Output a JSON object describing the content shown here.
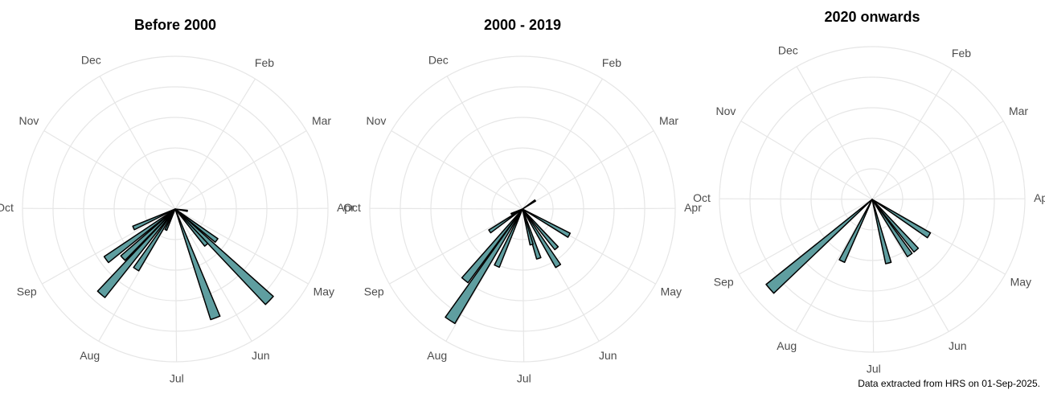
{
  "chart_data": [
    {
      "type": "bar",
      "polar": true,
      "title": "Before 2000",
      "x": [
        100,
        129,
        136,
        141,
        162,
        207,
        216,
        224,
        230,
        237,
        249
      ],
      "values": [
        0.8,
        3.4,
        8.6,
        3.1,
        7.6,
        1.5,
        4.7,
        7.4,
        4.7,
        5.6,
        3.0
      ],
      "color": "#5f9ea0",
      "xlim": [
        0,
        365
      ],
      "ylim": [
        0,
        10
      ],
      "yticks": [
        2,
        4,
        6,
        8,
        10
      ],
      "xticks": [
        {
          "value": 32,
          "label": "Feb"
        },
        {
          "value": 60,
          "label": "Mar"
        },
        {
          "value": 91,
          "label": "Apr"
        },
        {
          "value": 121,
          "label": "May"
        },
        {
          "value": 152,
          "label": "Jun"
        },
        {
          "value": 182,
          "label": "Jul"
        },
        {
          "value": 213,
          "label": "Aug"
        },
        {
          "value": 244,
          "label": "Sep"
        },
        {
          "value": 274,
          "label": "Oct"
        },
        {
          "value": 305,
          "label": "Nov"
        },
        {
          "value": 335,
          "label": "Dec"
        }
      ]
    },
    {
      "type": "bar",
      "polar": true,
      "title": "2000 - 2019",
      "x": [
        57,
        121,
        141,
        150,
        164,
        168,
        207,
        216,
        222,
        239,
        250
      ],
      "values": [
        1.0,
        3.5,
        3.4,
        4.4,
        3.4,
        2.4,
        4.1,
        8.7,
        6.0,
        2.6,
        0.8
      ],
      "color": "#5f9ea0",
      "xlim": [
        0,
        365
      ],
      "ylim": [
        0,
        10
      ],
      "yticks": [
        2,
        4,
        6,
        8,
        10
      ],
      "xticks": [
        {
          "value": 32,
          "label": "Feb"
        },
        {
          "value": 60,
          "label": "Mar"
        },
        {
          "value": 91,
          "label": "Apr"
        },
        {
          "value": 121,
          "label": "May"
        },
        {
          "value": 152,
          "label": "Jun"
        },
        {
          "value": 182,
          "label": "Jul"
        },
        {
          "value": 213,
          "label": "Aug"
        },
        {
          "value": 244,
          "label": "Sep"
        },
        {
          "value": 274,
          "label": "Oct"
        },
        {
          "value": 305,
          "label": "Nov"
        },
        {
          "value": 335,
          "label": "Dec"
        }
      ]
    },
    {
      "type": "bar",
      "polar": true,
      "title": "2020 onwards",
      "x": [
        124,
        141,
        148,
        168,
        209,
        232
      ],
      "values": [
        4.4,
        4.4,
        4.4,
        4.3,
        4.5,
        8.9
      ],
      "color": "#5f9ea0",
      "xlim": [
        0,
        365
      ],
      "ylim": [
        0,
        10
      ],
      "yticks": [
        2,
        4,
        6,
        8,
        10
      ],
      "xticks": [
        {
          "value": 32,
          "label": "Feb"
        },
        {
          "value": 60,
          "label": "Mar"
        },
        {
          "value": 91,
          "label": "Apr"
        },
        {
          "value": 121,
          "label": "May"
        },
        {
          "value": 152,
          "label": "Jun"
        },
        {
          "value": 182,
          "label": "Jul"
        },
        {
          "value": 213,
          "label": "Aug"
        },
        {
          "value": 244,
          "label": "Sep"
        },
        {
          "value": 274,
          "label": "Oct"
        },
        {
          "value": 305,
          "label": "Nov"
        },
        {
          "value": 335,
          "label": "Dec"
        }
      ]
    }
  ],
  "caption": "Data extracted from HRS on 01-Sep-2025."
}
